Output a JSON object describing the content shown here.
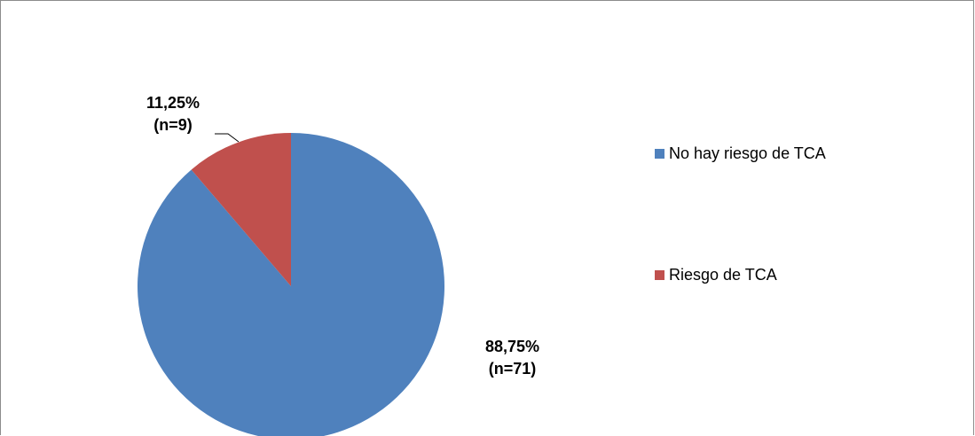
{
  "chart_data": {
    "type": "pie",
    "start_angle_deg": 0,
    "direction": "clockwise",
    "legend_position": "right",
    "slices": [
      {
        "name": "No hay riesgo de  TCA",
        "value": 88.75,
        "count": 71,
        "color": "#4f81bd",
        "label_percent": "88,75%",
        "label_count": "(n=71)"
      },
      {
        "name": "Riesgo de TCA",
        "value": 11.25,
        "count": 9,
        "color": "#c0504d",
        "label_percent": "11,25%",
        "label_count": "(n=9)"
      }
    ]
  }
}
